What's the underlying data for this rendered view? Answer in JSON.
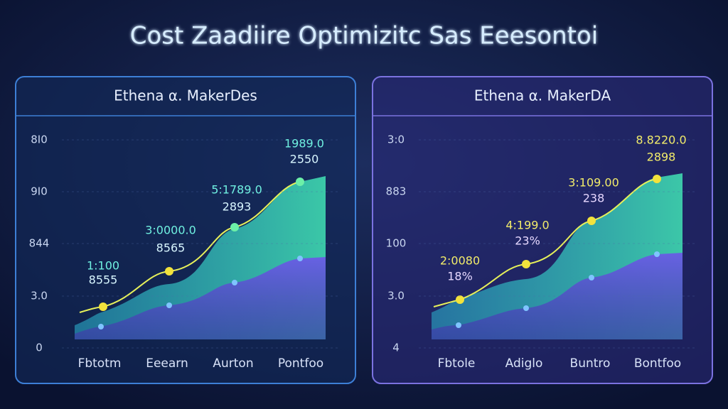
{
  "title": "Cost Zaadiire Optimizitc Sas Eeesontoi",
  "panels": [
    {
      "title": "Ethena α. MakerDes",
      "y_labels": [
        "8I0",
        "9I0",
        "844",
        "3.0",
        "0"
      ],
      "x_labels": [
        "Fbtotm",
        "Eeearn",
        "Aurton",
        "Pontfoo"
      ],
      "annotations": [
        [
          "1:100",
          "8555"
        ],
        [
          "3:0000.0",
          "8565"
        ],
        [
          "5:1789.0",
          "2893"
        ],
        [
          "1989.0",
          "2550"
        ]
      ]
    },
    {
      "title": "Ethena α. MakerDA",
      "y_labels": [
        "3:0",
        "883",
        "100",
        "3.0",
        "4"
      ],
      "x_labels": [
        "Fbtole",
        "Adiglo",
        "Buntro",
        "Bontfoo"
      ],
      "annotations": [
        [
          "2:0080",
          "18%"
        ],
        [
          "4:199.0",
          "23%"
        ],
        [
          "3:109.00",
          "238"
        ],
        [
          "8.8220.0",
          "2898"
        ]
      ]
    }
  ]
}
